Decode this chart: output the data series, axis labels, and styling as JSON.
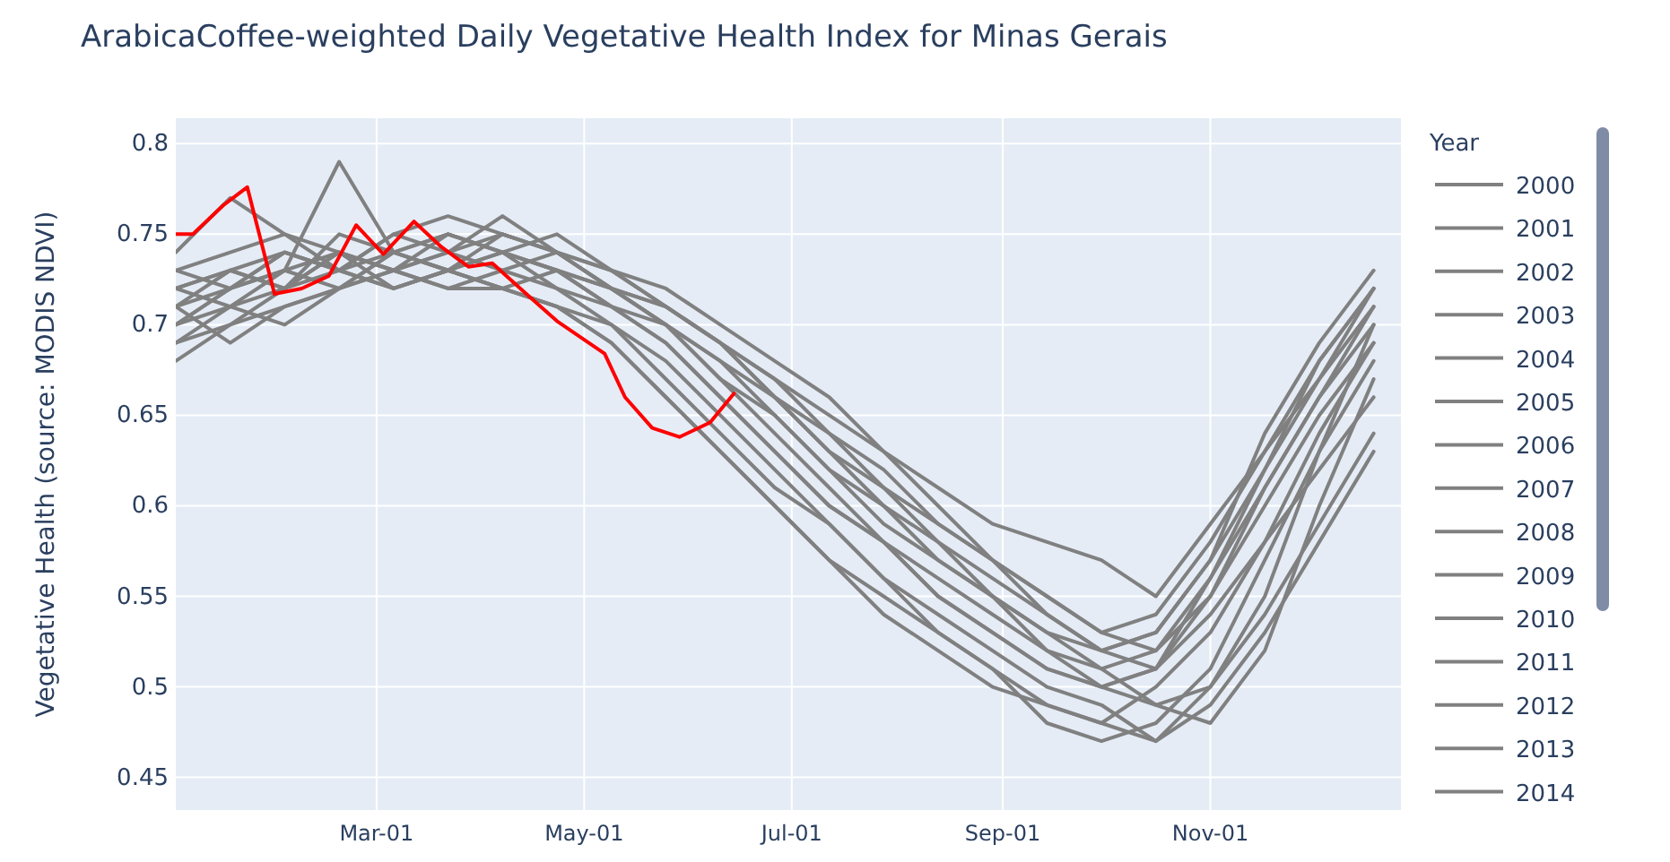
{
  "chart_data": {
    "type": "line",
    "title": "ArabicaCoffee-weighted Daily Vegetative Health Index for Minas Gerais",
    "ylabel": "Vegetative Health (source: MODIS NDVI)",
    "legend_title": "Year",
    "legend": "right",
    "grid": true,
    "marker": "none",
    "line_style": "solid",
    "xlim": [
      "--01-01",
      "--12-27"
    ],
    "ylim": [
      0.432,
      0.814
    ],
    "xticks": [
      {
        "value": "--03-01",
        "label": "Mar-01"
      },
      {
        "value": "--05-01",
        "label": "May-01"
      },
      {
        "value": "--07-01",
        "label": "Jul-01"
      },
      {
        "value": "--09-01",
        "label": "Sep-01"
      },
      {
        "value": "--11-01",
        "label": "Nov-01"
      }
    ],
    "yticks": [
      0.45,
      0.5,
      0.55,
      0.6,
      0.65,
      0.7,
      0.75,
      0.8
    ],
    "x": [
      "--01-01",
      "--01-17",
      "--02-02",
      "--02-18",
      "--03-06",
      "--03-22",
      "--04-07",
      "--04-23",
      "--05-09",
      "--05-25",
      "--06-10",
      "--06-26",
      "--07-12",
      "--07-28",
      "--08-13",
      "--08-29",
      "--09-14",
      "--09-30",
      "--10-16",
      "--11-01",
      "--11-17",
      "--12-03",
      "--12-19"
    ],
    "series": [
      {
        "name": "2000",
        "color": "#808080",
        "values": [
          0.72,
          0.73,
          0.74,
          0.73,
          0.74,
          0.75,
          0.74,
          0.73,
          0.71,
          0.69,
          0.66,
          0.63,
          0.6,
          0.58,
          0.56,
          0.54,
          0.52,
          0.5,
          0.51,
          0.56,
          0.62,
          0.68,
          0.72
        ]
      },
      {
        "name": "2001",
        "color": "#808080",
        "values": [
          0.7,
          0.71,
          0.72,
          0.74,
          0.73,
          0.74,
          0.75,
          0.74,
          0.72,
          0.7,
          0.68,
          0.65,
          0.62,
          0.6,
          0.57,
          0.55,
          0.53,
          0.51,
          0.49,
          0.5,
          0.55,
          0.63,
          0.7
        ]
      },
      {
        "name": "2002",
        "color": "#808080",
        "values": [
          0.74,
          0.77,
          0.75,
          0.73,
          0.75,
          0.76,
          0.75,
          0.74,
          0.73,
          0.71,
          0.69,
          0.67,
          0.65,
          0.63,
          0.61,
          0.59,
          0.58,
          0.57,
          0.55,
          0.59,
          0.63,
          0.67,
          0.71
        ]
      },
      {
        "name": "2003",
        "color": "#808080",
        "values": [
          0.68,
          0.7,
          0.72,
          0.73,
          0.72,
          0.73,
          0.72,
          0.71,
          0.7,
          0.68,
          0.65,
          0.62,
          0.59,
          0.56,
          0.53,
          0.51,
          0.49,
          0.48,
          0.5,
          0.53,
          0.58,
          0.64,
          0.69
        ]
      },
      {
        "name": "2004",
        "color": "#808080",
        "values": [
          0.71,
          0.69,
          0.71,
          0.72,
          0.74,
          0.73,
          0.74,
          0.73,
          0.72,
          0.7,
          0.67,
          0.64,
          0.61,
          0.58,
          0.55,
          0.53,
          0.51,
          0.5,
          0.49,
          0.48,
          0.52,
          0.6,
          0.67
        ]
      },
      {
        "name": "2005",
        "color": "#808080",
        "values": [
          0.73,
          0.72,
          0.73,
          0.79,
          0.74,
          0.75,
          0.74,
          0.75,
          0.73,
          0.72,
          0.7,
          0.68,
          0.66,
          0.63,
          0.6,
          0.57,
          0.54,
          0.52,
          0.53,
          0.57,
          0.64,
          0.69,
          0.73
        ]
      },
      {
        "name": "2006",
        "color": "#808080",
        "values": [
          0.69,
          0.71,
          0.7,
          0.72,
          0.73,
          0.72,
          0.73,
          0.74,
          0.72,
          0.71,
          0.69,
          0.66,
          0.63,
          0.6,
          0.58,
          0.56,
          0.54,
          0.52,
          0.51,
          0.54,
          0.58,
          0.62,
          0.66
        ]
      },
      {
        "name": "2007",
        "color": "#808080",
        "values": [
          0.72,
          0.71,
          0.73,
          0.74,
          0.73,
          0.72,
          0.72,
          0.71,
          0.69,
          0.66,
          0.63,
          0.6,
          0.57,
          0.55,
          0.53,
          0.51,
          0.48,
          0.47,
          0.48,
          0.51,
          0.57,
          0.63,
          0.68
        ]
      },
      {
        "name": "2008",
        "color": "#808080",
        "values": [
          0.7,
          0.72,
          0.74,
          0.73,
          0.75,
          0.74,
          0.76,
          0.74,
          0.73,
          0.71,
          0.69,
          0.66,
          0.64,
          0.61,
          0.58,
          0.55,
          0.52,
          0.51,
          0.52,
          0.56,
          0.61,
          0.66,
          0.71
        ]
      },
      {
        "name": "2009",
        "color": "#808080",
        "values": [
          0.71,
          0.73,
          0.72,
          0.74,
          0.72,
          0.73,
          0.74,
          0.72,
          0.71,
          0.7,
          0.68,
          0.66,
          0.63,
          0.61,
          0.59,
          0.57,
          0.55,
          0.53,
          0.52,
          0.55,
          0.6,
          0.65,
          0.69
        ]
      },
      {
        "name": "2010",
        "color": "#808080",
        "values": [
          0.69,
          0.7,
          0.71,
          0.72,
          0.73,
          0.74,
          0.73,
          0.72,
          0.7,
          0.67,
          0.64,
          0.61,
          0.59,
          0.56,
          0.54,
          0.52,
          0.5,
          0.49,
          0.47,
          0.5,
          0.54,
          0.59,
          0.64
        ]
      },
      {
        "name": "2011",
        "color": "#808080",
        "values": [
          0.73,
          0.74,
          0.75,
          0.74,
          0.73,
          0.75,
          0.74,
          0.73,
          0.72,
          0.71,
          0.69,
          0.67,
          0.64,
          0.62,
          0.59,
          0.57,
          0.55,
          0.53,
          0.54,
          0.58,
          0.63,
          0.68,
          0.72
        ]
      },
      {
        "name": "2012",
        "color": "#808080",
        "values": [
          0.7,
          0.72,
          0.73,
          0.72,
          0.74,
          0.73,
          0.72,
          0.73,
          0.71,
          0.69,
          0.66,
          0.63,
          0.6,
          0.58,
          0.55,
          0.53,
          0.51,
          0.5,
          0.51,
          0.55,
          0.61,
          0.66,
          0.7
        ]
      },
      {
        "name": "2013",
        "color": "#808080",
        "values": [
          0.72,
          0.73,
          0.72,
          0.75,
          0.74,
          0.73,
          0.75,
          0.74,
          0.72,
          0.7,
          0.67,
          0.65,
          0.62,
          0.59,
          0.57,
          0.55,
          0.53,
          0.52,
          0.53,
          0.57,
          0.62,
          0.67,
          0.72
        ]
      },
      {
        "name": "2014",
        "color": "#808080",
        "values": [
          0.71,
          0.72,
          0.74,
          0.73,
          0.72,
          0.73,
          0.72,
          0.71,
          0.69,
          0.66,
          0.63,
          0.6,
          0.57,
          0.54,
          0.52,
          0.5,
          0.49,
          0.48,
          0.47,
          0.49,
          0.53,
          0.58,
          0.63
        ]
      },
      {
        "color": "#ff0000",
        "x": [
          "--01-01",
          "--01-06",
          "--01-15",
          "--01-22",
          "--01-30",
          "--02-07",
          "--02-15",
          "--02-23",
          "--03-03",
          "--03-12",
          "--03-20",
          "--03-28",
          "--04-04",
          "--04-14",
          "--04-23",
          "--05-07",
          "--05-13",
          "--05-21",
          "--05-29",
          "--06-07",
          "--06-14"
        ],
        "values": [
          0.75,
          0.75,
          0.766,
          0.776,
          0.717,
          0.72,
          0.727,
          0.755,
          0.739,
          0.757,
          0.743,
          0.732,
          0.734,
          0.717,
          0.702,
          0.684,
          0.66,
          0.643,
          0.638,
          0.646,
          0.662
        ]
      }
    ]
  }
}
